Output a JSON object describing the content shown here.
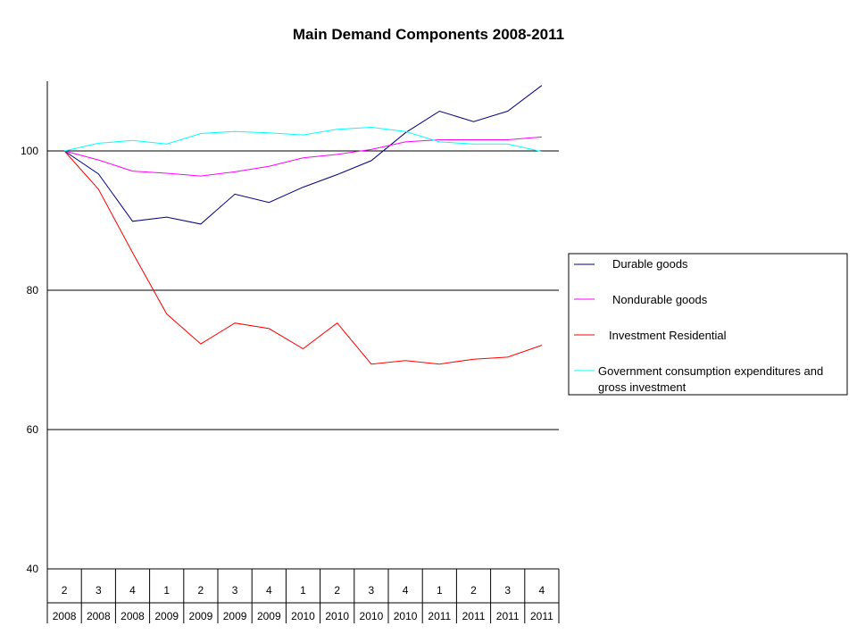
{
  "chart_data": {
    "type": "line",
    "title": "Main Demand Components 2008-2011",
    "xlabel": "",
    "ylabel": "",
    "ylim": [
      40,
      110
    ],
    "yticks": [
      40,
      60,
      80,
      100
    ],
    "gridlines": [
      60,
      80,
      100
    ],
    "legend_position": "right",
    "quarters": [
      "2",
      "3",
      "4",
      "1",
      "2",
      "3",
      "4",
      "1",
      "2",
      "3",
      "4",
      "1",
      "2",
      "3",
      "4"
    ],
    "years": [
      "2008",
      "2008",
      "2008",
      "2009",
      "2009",
      "2009",
      "2009",
      "2010",
      "2010",
      "2010",
      "2010",
      "2011",
      "2011",
      "2011",
      "2011"
    ],
    "series": [
      {
        "name": "Durable goods",
        "color": "#000080",
        "values": [
          100,
          96.7,
          89.9,
          90.5,
          89.5,
          93.8,
          92.6,
          94.8,
          96.6,
          98.6,
          102.6,
          105.7,
          104.2,
          105.7,
          109.4
        ]
      },
      {
        "name": "Nondurable goods",
        "color": "#ff00ff",
        "values": [
          100,
          98.7,
          97.1,
          96.8,
          96.4,
          97.0,
          97.8,
          99.0,
          99.5,
          100.2,
          101.3,
          101.6,
          101.6,
          101.6,
          102.0
        ]
      },
      {
        "name": "Investment Residential",
        "color": "#ff0000",
        "values": [
          100,
          94.5,
          85.4,
          76.6,
          72.3,
          75.3,
          74.5,
          71.6,
          75.3,
          69.4,
          69.9,
          69.4,
          70.1,
          70.4,
          72.1
        ]
      },
      {
        "name": "Government consumption expenditures and gross investment",
        "color": "#00ffff",
        "values": [
          100,
          101.1,
          101.5,
          101.0,
          102.5,
          102.8,
          102.6,
          102.3,
          103.1,
          103.4,
          102.8,
          101.3,
          101.0,
          101.0,
          99.9
        ]
      }
    ]
  }
}
